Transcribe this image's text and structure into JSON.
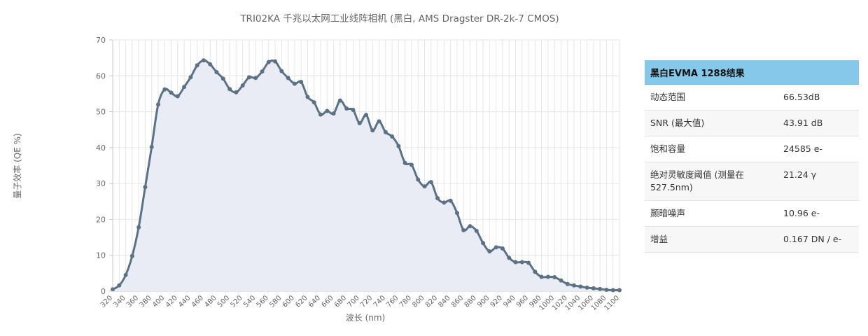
{
  "chart_data": {
    "type": "area",
    "title": "TRI02KA 千兆以太网工业线阵相机 (黑白, AMS Dragster DR-2k-7 CMOS)",
    "xlabel": "波长 (nm)",
    "ylabel": "量子效率 (QE %)",
    "xlim": [
      320,
      1100
    ],
    "ylim": [
      0,
      70
    ],
    "yticks": [
      0,
      10,
      20,
      30,
      40,
      50,
      60,
      70
    ],
    "xticks": [
      320,
      340,
      360,
      380,
      400,
      420,
      440,
      460,
      480,
      500,
      520,
      540,
      560,
      580,
      600,
      620,
      640,
      660,
      680,
      700,
      720,
      740,
      760,
      780,
      800,
      820,
      840,
      860,
      880,
      900,
      920,
      940,
      960,
      980,
      1000,
      1020,
      1040,
      1060,
      1080,
      1100
    ],
    "grid": true,
    "colors": {
      "line": "#5a7186",
      "fill": "#e9ecf4"
    },
    "x": [
      320,
      330,
      340,
      350,
      360,
      370,
      380,
      390,
      400,
      410,
      420,
      430,
      440,
      450,
      460,
      470,
      480,
      490,
      500,
      510,
      520,
      530,
      540,
      550,
      560,
      570,
      580,
      590,
      600,
      610,
      620,
      630,
      640,
      650,
      660,
      670,
      680,
      690,
      700,
      710,
      720,
      730,
      740,
      750,
      760,
      770,
      780,
      790,
      800,
      810,
      820,
      830,
      840,
      850,
      860,
      870,
      880,
      890,
      900,
      910,
      920,
      930,
      940,
      950,
      960,
      970,
      980,
      990,
      1000,
      1010,
      1020,
      1030,
      1040,
      1050,
      1060,
      1070,
      1080,
      1090,
      1100
    ],
    "values": [
      0.5,
      1.6,
      4.5,
      9.8,
      17.8,
      29.0,
      40.2,
      52.0,
      56.2,
      55.3,
      54.3,
      56.9,
      59.6,
      62.9,
      64.3,
      63.2,
      61.0,
      59.2,
      56.3,
      55.4,
      57.3,
      59.6,
      59.4,
      61.2,
      63.8,
      64.0,
      61.3,
      59.4,
      57.8,
      58.3,
      54.1,
      52.6,
      49.2,
      50.2,
      49.5,
      53.1,
      50.9,
      50.5,
      46.8,
      49.1,
      44.8,
      47.3,
      44.3,
      43.1,
      40.4,
      35.7,
      35.2,
      31.1,
      29.2,
      30.4,
      25.9,
      24.7,
      25.2,
      21.8,
      17.0,
      18.1,
      16.8,
      13.4,
      11.1,
      12.2,
      11.9,
      9.3,
      8.1,
      8.1,
      7.9,
      5.4,
      4.0,
      4.0,
      3.9,
      3.0,
      2.0,
      1.6,
      1.3,
      1.0,
      0.8,
      0.6,
      0.4,
      0.3,
      0.3
    ]
  },
  "panel": {
    "title": "黑白EVMA 1288结果",
    "rows": [
      {
        "label": "动态范围",
        "value": "66.53dB"
      },
      {
        "label": "SNR (最大值)",
        "value": "43.91 dB"
      },
      {
        "label": "饱和容量",
        "value": "24585 e-"
      },
      {
        "label": "绝对灵敏度阈值 (测量在527.5nm)",
        "value": "21.24 γ"
      },
      {
        "label": "颞暗噪声",
        "value": "10.96 e-"
      },
      {
        "label": "增益",
        "value": "0.167 DN / e-"
      }
    ]
  }
}
